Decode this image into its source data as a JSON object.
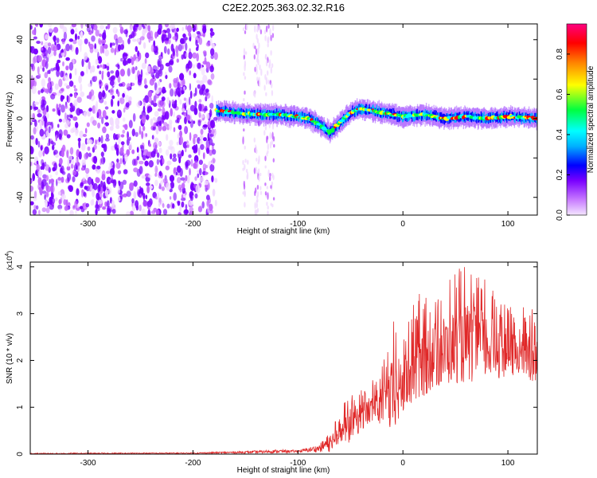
{
  "title": "C2E2.2025.363.02.32.R16",
  "chart_data": [
    {
      "type": "heatmap",
      "title": "C2E2.2025.363.02.32.R16",
      "xlabel": "Height of straight line (km)",
      "ylabel": "Frequency (Hz)",
      "xlim": [
        -355,
        128
      ],
      "ylim": [
        -49,
        48
      ],
      "x_ticks": [
        -300,
        -200,
        -100,
        0,
        100
      ],
      "y_ticks": [
        -40,
        -20,
        0,
        20,
        40
      ],
      "x_tick_labels": [
        "-300",
        "-200",
        "-100",
        "0",
        "100"
      ],
      "y_tick_labels": [
        "-40",
        "-20",
        "0",
        "20",
        "40"
      ],
      "colorbar": {
        "label": "Normalized spectral amplitude",
        "range": [
          0,
          0.95
        ],
        "ticks": [
          0.0,
          0.2,
          0.4,
          0.6,
          0.8
        ],
        "tick_labels": [
          "0.0",
          "0.2",
          "0.4",
          "0.6",
          "0.8"
        ],
        "colormap": [
          "#f0d8ff",
          "#c060ff",
          "#7a00ff",
          "#0000ff",
          "#00b0ff",
          "#00ffff",
          "#00ff40",
          "#ffff00",
          "#ff8000",
          "#ff0000",
          "#ff0080"
        ]
      },
      "signal_trace": {
        "description_of_ridge": "frequency centre of narrow signal band vs height",
        "x": [
          -178,
          -160,
          -140,
          -120,
          -100,
          -90,
          -80,
          -70,
          -60,
          -50,
          -40,
          -30,
          -20,
          -10,
          0,
          20,
          40,
          60,
          80,
          100,
          128
        ],
        "y": [
          4,
          3,
          2,
          2,
          1,
          0,
          -3,
          -7,
          -2,
          3,
          5,
          4,
          3,
          2,
          1,
          2,
          0,
          1,
          0,
          1,
          0
        ]
      },
      "noise_region": {
        "x_range": [
          -355,
          -178
        ],
        "y_range": [
          -49,
          48
        ]
      }
    },
    {
      "type": "line",
      "xlabel": "Height of straight line (km)",
      "ylabel": "SNR (10 * v/v)",
      "y_multiplier": "(x10⁴)",
      "y_multiplier_base": "(x10",
      "y_multiplier_exp": "4",
      "y_multiplier_close": ")",
      "xlim": [
        -355,
        128
      ],
      "ylim": [
        0,
        4.1
      ],
      "x_ticks": [
        -300,
        -200,
        -100,
        0,
        100
      ],
      "y_ticks": [
        0,
        1,
        2,
        3,
        4
      ],
      "x_tick_labels": [
        "-300",
        "-200",
        "-100",
        "0",
        "100"
      ],
      "y_tick_labels": [
        "0",
        "1",
        "2",
        "3",
        "4"
      ],
      "series": [
        {
          "name": "SNR",
          "color": "#e02828",
          "envelope_x": [
            -355,
            -200,
            -150,
            -120,
            -100,
            -80,
            -70,
            -60,
            -50,
            -40,
            -30,
            -20,
            -10,
            0,
            10,
            20,
            30,
            40,
            50,
            60,
            70,
            80,
            90,
            100,
            110,
            120,
            128
          ],
          "envelope_mean": [
            0.01,
            0.02,
            0.04,
            0.06,
            0.06,
            0.12,
            0.25,
            0.45,
            0.6,
            0.8,
            0.95,
            1.05,
            1.2,
            1.45,
            1.7,
            2.0,
            2.1,
            2.2,
            2.3,
            2.35,
            2.35,
            2.3,
            2.2,
            2.15,
            2.1,
            2.05,
            2.0
          ],
          "envelope_max": [
            0.03,
            0.04,
            0.08,
            0.12,
            0.1,
            0.25,
            0.6,
            0.9,
            1.4,
            1.4,
            1.6,
            1.9,
            2.9,
            2.7,
            3.2,
            3.6,
            3.6,
            3.8,
            3.9,
            4.1,
            4.0,
            3.8,
            3.4,
            3.2,
            3.0,
            3.3,
            2.8
          ]
        }
      ]
    }
  ]
}
